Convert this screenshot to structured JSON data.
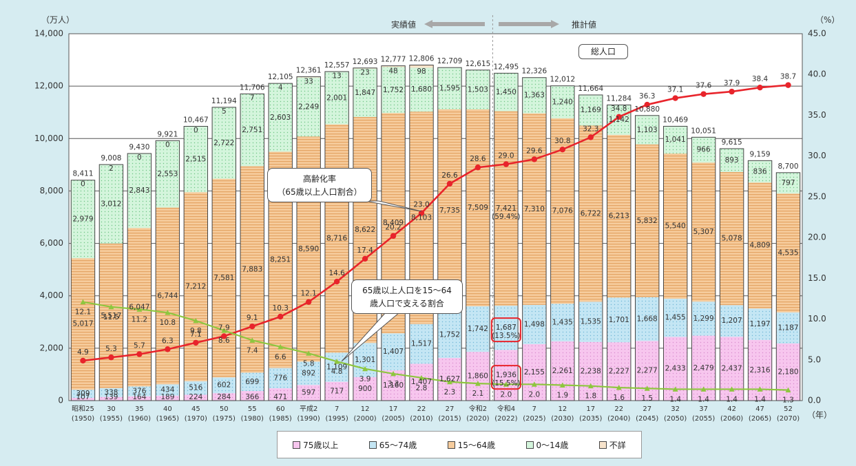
{
  "chart_data": {
    "type": "bar",
    "stacked": true,
    "left_axis_unit": "（万人）",
    "right_axis_unit": "（%）",
    "x_unit": "（年）",
    "left_ylim": [
      0,
      14000
    ],
    "left_ticks": [
      "0",
      "2,000",
      "4,000",
      "6,000",
      "8,000",
      "10,000",
      "12,000",
      "14,000"
    ],
    "right_ylim": [
      0,
      45
    ],
    "right_ticks": [
      "0.0",
      "5.0",
      "10.0",
      "15.0",
      "20.0",
      "25.0",
      "30.0",
      "35.0",
      "40.0",
      "45.0"
    ],
    "grid": "horizontal",
    "categories": [
      {
        "era": "昭和25",
        "year": "(1950)"
      },
      {
        "era": "30",
        "year": "(1955)"
      },
      {
        "era": "35",
        "year": "(1960)"
      },
      {
        "era": "40",
        "year": "(1965)"
      },
      {
        "era": "45",
        "year": "(1970)"
      },
      {
        "era": "50",
        "year": "(1975)"
      },
      {
        "era": "55",
        "year": "(1980)"
      },
      {
        "era": "60",
        "year": "(1985)"
      },
      {
        "era": "平成2",
        "year": "(1990)"
      },
      {
        "era": "7",
        "year": "(1995)"
      },
      {
        "era": "12",
        "year": "(2000)"
      },
      {
        "era": "17",
        "year": "(2005)"
      },
      {
        "era": "22",
        "year": "(2010)"
      },
      {
        "era": "27",
        "year": "(2015)"
      },
      {
        "era": "令和2",
        "year": "(2020)"
      },
      {
        "era": "令和4",
        "year": "(2022)"
      },
      {
        "era": "7",
        "year": "(2025)"
      },
      {
        "era": "12",
        "year": "(2030)"
      },
      {
        "era": "17",
        "year": "(2035)"
      },
      {
        "era": "22",
        "year": "(2040)"
      },
      {
        "era": "27",
        "year": "(2045)"
      },
      {
        "era": "32",
        "year": "(2050)"
      },
      {
        "era": "37",
        "year": "(2055)"
      },
      {
        "era": "42",
        "year": "(2060)"
      },
      {
        "era": "47",
        "year": "(2065)"
      },
      {
        "era": "52",
        "year": "(2070)"
      }
    ],
    "series": [
      {
        "name": "75歳以上",
        "color": "#f7c6ee",
        "values": [
          107,
          139,
          164,
          189,
          224,
          284,
          366,
          471,
          597,
          717,
          900,
          1160,
          1407,
          1627,
          1860,
          1936,
          2155,
          2261,
          2238,
          2227,
          2277,
          2433,
          2479,
          2437,
          2316,
          2180
        ],
        "labels": [
          "107",
          "139",
          "164",
          "189",
          "224",
          "284",
          "366",
          "471",
          "597",
          "717",
          "900",
          "1,160",
          "1,407",
          "1,627",
          "1,860",
          "1,936",
          "2,155",
          "2,261",
          "2,238",
          "2,227",
          "2,277",
          "2,433",
          "2,479",
          "2,437",
          "2,316",
          "2,180"
        ]
      },
      {
        "name": "65～74歳",
        "color": "#c4e6f4",
        "values": [
          309,
          338,
          376,
          434,
          516,
          602,
          699,
          776,
          892,
          1109,
          1301,
          1407,
          1517,
          1752,
          1742,
          1687,
          1498,
          1435,
          1535,
          1701,
          1668,
          1455,
          1299,
          1207,
          1197,
          1187
        ],
        "labels": [
          "309",
          "338",
          "376",
          "434",
          "516",
          "602",
          "699",
          "776",
          "892",
          "1,109",
          "1,301",
          "1,407",
          "1,517",
          "1,752",
          "1,742",
          "1,687",
          "1,498",
          "1,435",
          "1,535",
          "1,701",
          "1,668",
          "1,455",
          "1,299",
          "1,207",
          "1,197",
          "1,187"
        ]
      },
      {
        "name": "15～64歳",
        "color": "#f3c493",
        "values": [
          5017,
          5517,
          6047,
          6744,
          7212,
          7581,
          7883,
          8251,
          8590,
          8716,
          8622,
          8409,
          8103,
          7735,
          7509,
          7421,
          7310,
          7076,
          6722,
          6213,
          5832,
          5540,
          5307,
          5078,
          4809,
          4535
        ],
        "labels": [
          "5,017",
          "5,517",
          "6,047",
          "6,744",
          "7,212",
          "7,581",
          "7,883",
          "8,251",
          "8,590",
          "8,716",
          "8,622",
          "8,409",
          "8,103",
          "7,735",
          "7,509",
          "7,421",
          "7,310",
          "7,076",
          "6,722",
          "6,213",
          "5,832",
          "5,540",
          "5,307",
          "5,078",
          "4,809",
          "4,535"
        ]
      },
      {
        "name": "0～14歳",
        "color": "#d4f5dc",
        "values": [
          2979,
          3012,
          2843,
          2553,
          2515,
          2722,
          2751,
          2603,
          2249,
          2001,
          1847,
          1752,
          1680,
          1595,
          1503,
          1450,
          1363,
          1240,
          1169,
          1142,
          1103,
          1041,
          966,
          893,
          836,
          797
        ],
        "labels": [
          "2,979",
          "3,012",
          "2,843",
          "2,553",
          "2,515",
          "2,722",
          "2,751",
          "2,603",
          "2,249",
          "2,001",
          "1,847",
          "1,752",
          "1,680",
          "1,595",
          "1,503",
          "1,450",
          "1,363",
          "1,240",
          "1,169",
          "1,142",
          "1,103",
          "1,041",
          "966",
          "893",
          "836",
          "797"
        ]
      },
      {
        "name": "不詳",
        "color": "#f8e4cc",
        "values": [
          0,
          2,
          0,
          0,
          0,
          5,
          7,
          4,
          33,
          13,
          23,
          48,
          98,
          0,
          0,
          0,
          0,
          0,
          0,
          0,
          0,
          0,
          0,
          0,
          0,
          0
        ],
        "labels": [
          "0",
          "2",
          "0",
          "0",
          "0",
          "5",
          "7",
          "4",
          "33",
          "13",
          "23",
          "48",
          "98",
          "",
          "",
          "",
          "",
          "",
          "",
          "",
          "",
          "",
          "",
          "",
          "",
          ""
        ]
      }
    ],
    "totals": [
      "8,411",
      "9,008",
      "9,430",
      "9,921",
      "10,467",
      "11,194",
      "11,706",
      "12,105",
      "12,361",
      "12,557",
      "12,693",
      "12,777",
      "12,806",
      "12,709",
      "12,615",
      "12,495",
      "12,326",
      "12,012",
      "11,664",
      "11,284",
      "10,880",
      "10,469",
      "10,051",
      "9,615",
      "9,159",
      "8,700"
    ],
    "lines": [
      {
        "name": "高齢化率",
        "color": "#e8242b",
        "axis": "right",
        "values": [
          4.9,
          5.3,
          5.7,
          6.3,
          7.1,
          7.9,
          9.1,
          10.3,
          12.1,
          14.6,
          17.4,
          20.2,
          23.0,
          26.6,
          28.6,
          29.0,
          29.6,
          30.8,
          32.3,
          34.8,
          36.3,
          37.1,
          37.6,
          37.9,
          38.4,
          38.7
        ]
      },
      {
        "name": "65歳以上人口を15～64歳人口で支える割合",
        "color": "#8ec63f",
        "axis": "right",
        "values": [
          12.1,
          11.5,
          11.2,
          10.8,
          9.8,
          8.6,
          7.4,
          6.6,
          5.8,
          4.8,
          3.9,
          3.3,
          2.8,
          2.3,
          2.1,
          2.0,
          2.0,
          1.9,
          1.8,
          1.6,
          1.5,
          1.4,
          1.4,
          1.4,
          1.4,
          1.3
        ]
      }
    ],
    "annotations": {
      "actual": "実績値",
      "projected": "推計値",
      "total_population": "総人口",
      "aging_rate_line1": "高齢化率",
      "aging_rate_line2": "（65歳以上人口割合）",
      "support_line1": "65歳以上人口を15～64",
      "support_line2": "歳人口で支える割合",
      "pct_2022_15_64": "(59.4%)",
      "pct_2022_65_74": "(13.5%)",
      "pct_2022_75": "(15.5%)"
    },
    "legend": {
      "placement": "bottom-center",
      "items": [
        "75歳以上",
        "65～74歳",
        "15～64歳",
        "0～14歳",
        "不詳"
      ]
    }
  }
}
